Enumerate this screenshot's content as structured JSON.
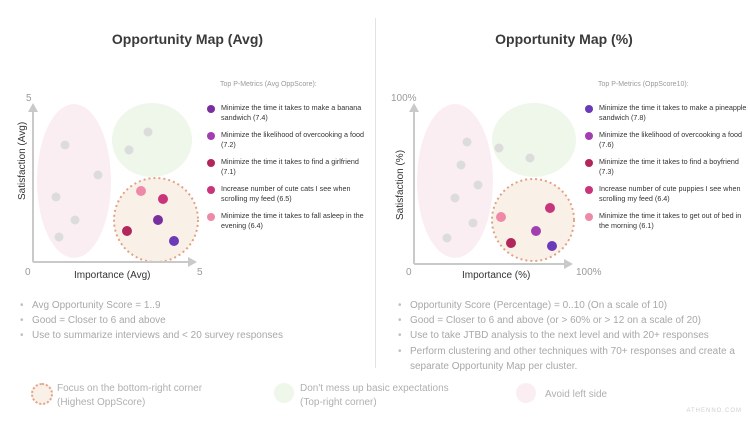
{
  "colors": {
    "dark_purple": "#7a2f9e",
    "purple": "#a23fb0",
    "crimson": "#b2275b",
    "magenta": "#c8357a",
    "pink": "#ee8aa8",
    "indigo": "#6a3ab8",
    "pink_zone": "#fbeef2",
    "green_zone": "#eef7ea",
    "target_zone": "#f9f1e8",
    "target_border": "#e3a283",
    "grey_dot": "#dcdcdc",
    "axis": "#c9c9c9"
  },
  "left": {
    "title": "Opportunity Map (Avg)",
    "y_axis_label": "Satisfaction (Avg)",
    "x_axis_label": "Importance (Avg)",
    "origin_label": "0",
    "x_max_label": "5",
    "y_max_label": "5",
    "legend_caption": "Top P-Metrics (Avg OppScore):",
    "metrics": [
      {
        "text": "Minimize the time it takes to make a banana sandwich (7.4)",
        "color": "#7a2f9e"
      },
      {
        "text": "Minimize the likelihood of overcooking a food (7.2)",
        "color": "#a23fb0"
      },
      {
        "text": "Minimize the time it takes to find a girlfriend (7.1)",
        "color": "#b2275b"
      },
      {
        "text": "Increase number of cute cats I see when scrolling my feed (6.5)",
        "color": "#c8357a"
      },
      {
        "text": "Minimize the time it takes to fall asleep in the evening (6.4)",
        "color": "#ee8aa8"
      }
    ],
    "bullets": [
      "Avg Opportunity Score = 1..9",
      "Good = Closer to 6 and above",
      "Use to summarize interviews and < 20 survey responses"
    ]
  },
  "right": {
    "title": "Opportunity Map (%)",
    "y_axis_label": "Satisfaction (%)",
    "x_axis_label": "Importance (%)",
    "origin_label": "0",
    "x_max_label": "100%",
    "y_max_label": "100%",
    "legend_caption": "Top P-Metrics (OppScore10):",
    "metrics": [
      {
        "text": "Minimize the time it takes to make a pineapple sandwich (7.8)",
        "color": "#6a3ab8"
      },
      {
        "text": "Minimize the likelihood of overcooking a food (7.6)",
        "color": "#a23fb0"
      },
      {
        "text": "Minimize the time it takes to find a boyfriend (7.3)",
        "color": "#b2275b"
      },
      {
        "text": "Increase number of cute puppies I see when scrolling my feed (6.4)",
        "color": "#c8357a"
      },
      {
        "text": "Minimize the time it takes to get out of bed in the morning (6.1)",
        "color": "#ee8aa8"
      }
    ],
    "bullets": [
      "Opportunity Score (Percentage) = 0..10 (On a scale of 10)",
      "Good = Closer to 6 and above (or > 60% or > 12 on a scale of 20)",
      "Use to take JTBD analysis to the next level and with 20+ responses",
      "Perform clustering and other techniques with 70+ responses and create a separate Opportunity Map per cluster."
    ]
  },
  "key": {
    "focus": "Focus on the bottom-right corner (Highest OppScore)",
    "expectations": "Don't mess up basic expectations (Top-right corner)",
    "avoid": "Avoid left side"
  },
  "watermark": "ATHENNO.COM"
}
